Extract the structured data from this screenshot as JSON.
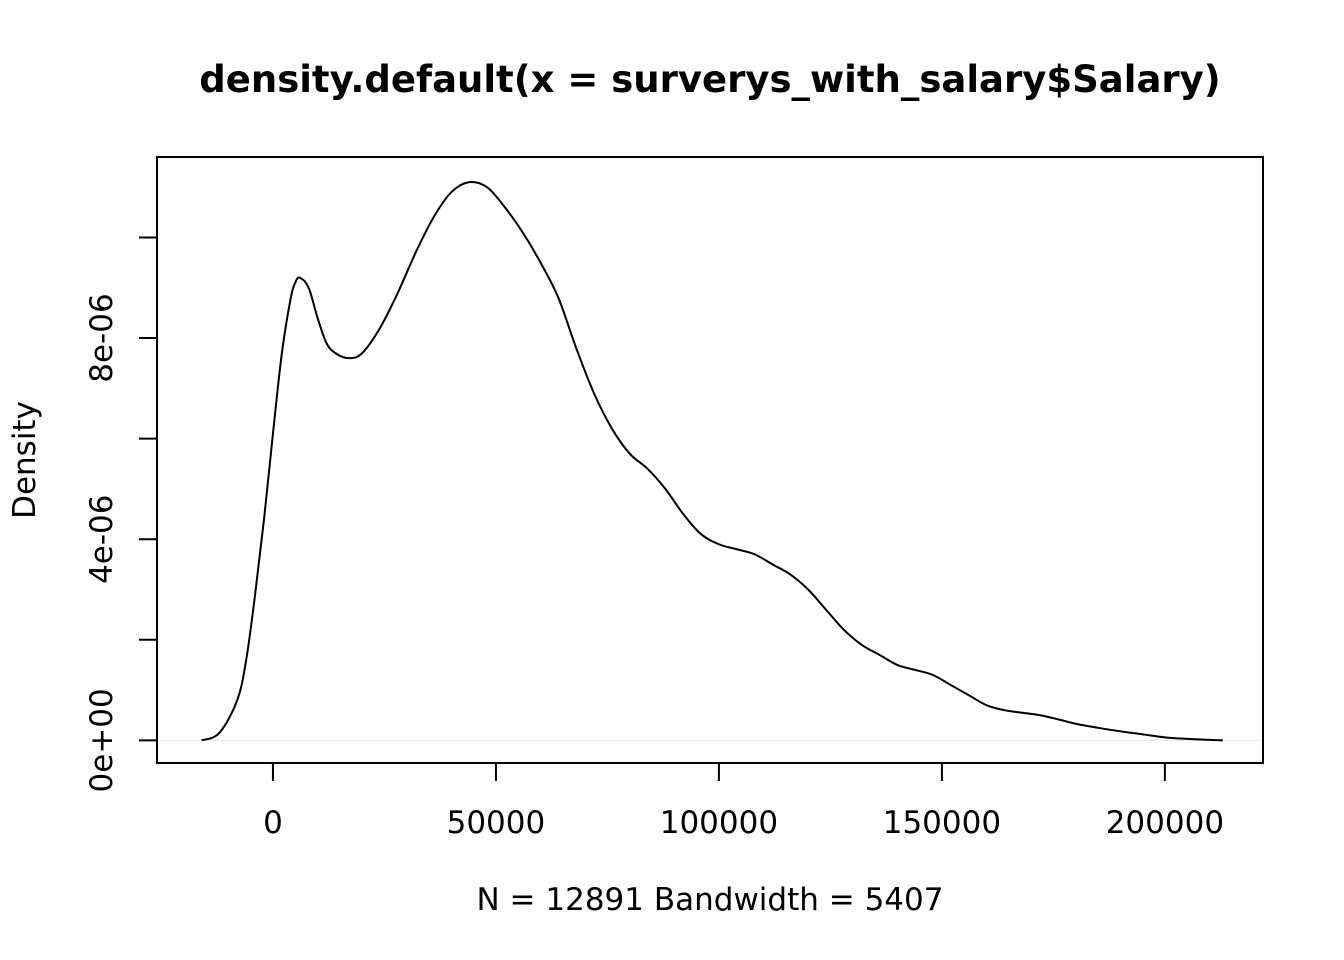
{
  "chart_data": {
    "type": "line",
    "title": "density.default(x = surverys_with_salary$Salary)",
    "xlabel": "N = 12891   Bandwidth = 5407",
    "ylabel": "Density",
    "xlim": [
      -26000,
      222000
    ],
    "ylim": [
      -4.5e-07,
      1.16e-05
    ],
    "x_ticks": [
      {
        "value": 0,
        "label": "0"
      },
      {
        "value": 50000,
        "label": "50000"
      },
      {
        "value": 100000,
        "label": "100000"
      },
      {
        "value": 150000,
        "label": "150000"
      },
      {
        "value": 200000,
        "label": "200000"
      }
    ],
    "y_ticks": [
      {
        "value": 0,
        "label": "0e+00"
      },
      {
        "value": 2e-06,
        "label": ""
      },
      {
        "value": 4e-06,
        "label": "4e-06"
      },
      {
        "value": 6e-06,
        "label": ""
      },
      {
        "value": 8e-06,
        "label": "8e-06"
      },
      {
        "value": 1e-05,
        "label": ""
      }
    ],
    "series": [
      {
        "x": [
          -16000,
          -12000,
          -8000,
          -6000,
          -4000,
          -2000,
          0,
          2000,
          4000,
          5000,
          6000,
          8000,
          10000,
          12000,
          14000,
          17000,
          20000,
          24000,
          28000,
          32000,
          36000,
          40000,
          44000,
          48000,
          52000,
          56000,
          60000,
          64000,
          68000,
          72000,
          76000,
          80000,
          84000,
          88000,
          92000,
          96000,
          100000,
          104000,
          108000,
          112000,
          116000,
          120000,
          124000,
          128000,
          132000,
          136000,
          140000,
          144000,
          148000,
          152000,
          156000,
          160000,
          164000,
          168000,
          172000,
          176000,
          180000,
          185000,
          190000,
          195000,
          200000,
          205000,
          210000,
          213000
        ],
        "y": [
          0.0,
          1.5e-07,
          8e-07,
          1.6e-06,
          2.9e-06,
          4.4e-06,
          6.1e-06,
          7.7e-06,
          8.8e-06,
          9.1e-06,
          9.2e-06,
          9e-06,
          8.4e-06,
          7.9e-06,
          7.7e-06,
          7.6e-06,
          7.7e-06,
          8.2e-06,
          8.9e-06,
          9.7e-06,
          1.04e-05,
          1.09e-05,
          1.11e-05,
          1.1e-05,
          1.06e-05,
          1.01e-05,
          9.5e-06,
          8.8e-06,
          7.8e-06,
          6.9e-06,
          6.2e-06,
          5.7e-06,
          5.4e-06,
          5e-06,
          4.5e-06,
          4.1e-06,
          3.9e-06,
          3.8e-06,
          3.7e-06,
          3.5e-06,
          3.3e-06,
          3e-06,
          2.6e-06,
          2.2e-06,
          1.9e-06,
          1.7e-06,
          1.5e-06,
          1.4e-06,
          1.3e-06,
          1.1e-06,
          9e-07,
          7e-07,
          6e-07,
          5.5e-07,
          5e-07,
          4.2e-07,
          3.3e-07,
          2.5e-07,
          1.8e-07,
          1.2e-07,
          6e-08,
          3e-08,
          1e-08,
          0.0
        ]
      }
    ]
  }
}
